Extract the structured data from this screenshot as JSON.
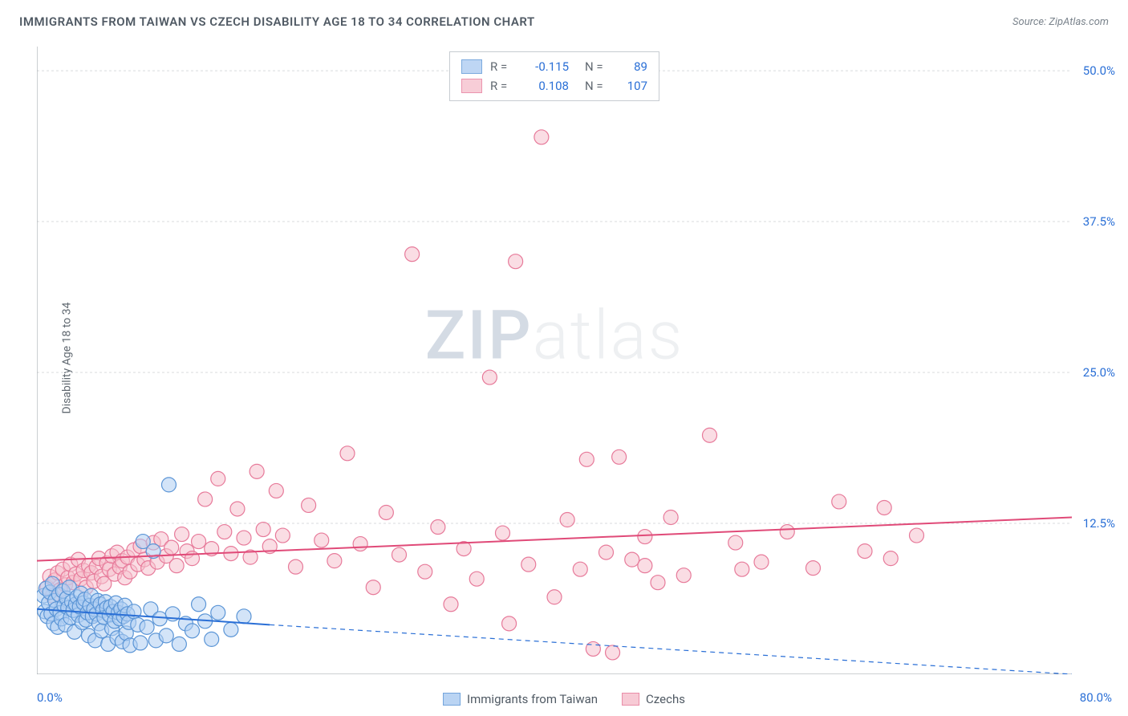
{
  "title": "IMMIGRANTS FROM TAIWAN VS CZECH DISABILITY AGE 18 TO 34 CORRELATION CHART",
  "source_label": "Source: ZipAtlas.com",
  "y_axis_label": "Disability Age 18 to 34",
  "watermark": {
    "zip": "ZIP",
    "atlas": "atlas",
    "color_zip": "#d4dbe4",
    "color_atlas": "#eef0f2"
  },
  "chart": {
    "type": "scatter",
    "background_color": "#ffffff",
    "grid_color": "#d8dbde",
    "axis_color": "#9aa0a6",
    "marker_radius": 9,
    "marker_stroke_width": 1.2,
    "xlim": [
      0,
      80
    ],
    "ylim": [
      0,
      52
    ],
    "y_ticks": [
      12.5,
      25.0,
      37.5,
      50.0
    ],
    "y_tick_labels": [
      "12.5%",
      "25.0%",
      "37.5%",
      "50.0%"
    ],
    "x_min_label": "0.0%",
    "x_max_label": "80.0%",
    "series": [
      {
        "name": "Immigrants from Taiwan",
        "fill_color": "#aecdf2",
        "stroke_color": "#5b95d6",
        "fill_opacity": 0.55,
        "R": "-0.115",
        "N": "89",
        "trend": {
          "x1": 0,
          "y1": 5.4,
          "x2": 18,
          "y2": 4.1,
          "dashed_ext_to": 80,
          "dashed_ext_y": 0.0,
          "color": "#2a6fd6",
          "width": 2
        },
        "points": [
          [
            0.5,
            6.5
          ],
          [
            0.6,
            5.2
          ],
          [
            0.7,
            7.1
          ],
          [
            0.8,
            4.8
          ],
          [
            0.9,
            5.9
          ],
          [
            1.0,
            6.8
          ],
          [
            1.1,
            5.0
          ],
          [
            1.2,
            7.5
          ],
          [
            1.3,
            4.2
          ],
          [
            1.4,
            6.1
          ],
          [
            1.5,
            5.4
          ],
          [
            1.6,
            3.9
          ],
          [
            1.7,
            6.6
          ],
          [
            1.8,
            5.1
          ],
          [
            1.9,
            4.6
          ],
          [
            2.0,
            6.9
          ],
          [
            2.1,
            5.7
          ],
          [
            2.2,
            4.1
          ],
          [
            2.3,
            6.3
          ],
          [
            2.4,
            5.5
          ],
          [
            2.5,
            7.2
          ],
          [
            2.6,
            4.7
          ],
          [
            2.7,
            6.0
          ],
          [
            2.8,
            5.3
          ],
          [
            2.9,
            3.5
          ],
          [
            3.0,
            5.8
          ],
          [
            3.1,
            6.4
          ],
          [
            3.2,
            4.9
          ],
          [
            3.3,
            5.6
          ],
          [
            3.4,
            6.7
          ],
          [
            3.5,
            4.3
          ],
          [
            3.6,
            5.9
          ],
          [
            3.7,
            6.2
          ],
          [
            3.8,
            4.5
          ],
          [
            3.9,
            5.1
          ],
          [
            4.0,
            3.2
          ],
          [
            4.1,
            5.7
          ],
          [
            4.2,
            6.5
          ],
          [
            4.3,
            4.8
          ],
          [
            4.4,
            5.4
          ],
          [
            4.5,
            2.8
          ],
          [
            4.6,
            5.0
          ],
          [
            4.7,
            6.1
          ],
          [
            4.8,
            4.2
          ],
          [
            4.9,
            5.8
          ],
          [
            5.0,
            3.6
          ],
          [
            5.1,
            5.3
          ],
          [
            5.2,
            4.7
          ],
          [
            5.3,
            6.0
          ],
          [
            5.4,
            5.5
          ],
          [
            5.5,
            2.5
          ],
          [
            5.6,
            4.9
          ],
          [
            5.7,
            5.6
          ],
          [
            5.8,
            3.8
          ],
          [
            5.9,
            5.2
          ],
          [
            6.0,
            4.4
          ],
          [
            6.1,
            5.9
          ],
          [
            6.2,
            3.0
          ],
          [
            6.3,
            5.1
          ],
          [
            6.4,
            4.6
          ],
          [
            6.5,
            5.4
          ],
          [
            6.6,
            2.7
          ],
          [
            6.7,
            4.8
          ],
          [
            6.8,
            5.7
          ],
          [
            6.9,
            3.4
          ],
          [
            7.0,
            5.0
          ],
          [
            7.1,
            4.3
          ],
          [
            7.2,
            2.4
          ],
          [
            7.5,
            5.2
          ],
          [
            7.8,
            4.1
          ],
          [
            8.0,
            2.6
          ],
          [
            8.2,
            11.0
          ],
          [
            8.5,
            3.9
          ],
          [
            8.8,
            5.4
          ],
          [
            9.0,
            10.2
          ],
          [
            9.2,
            2.8
          ],
          [
            9.5,
            4.6
          ],
          [
            10.0,
            3.2
          ],
          [
            10.2,
            15.7
          ],
          [
            10.5,
            5.0
          ],
          [
            11.0,
            2.5
          ],
          [
            11.5,
            4.2
          ],
          [
            12.0,
            3.6
          ],
          [
            12.5,
            5.8
          ],
          [
            13.0,
            4.4
          ],
          [
            13.5,
            2.9
          ],
          [
            14.0,
            5.1
          ],
          [
            15.0,
            3.7
          ],
          [
            16.0,
            4.8
          ]
        ]
      },
      {
        "name": "Czechs",
        "fill_color": "#f6c1ce",
        "stroke_color": "#e77a9a",
        "fill_opacity": 0.55,
        "R": "0.108",
        "N": "107",
        "trend": {
          "x1": 0,
          "y1": 9.4,
          "x2": 80,
          "y2": 13.0,
          "color": "#e04a78",
          "width": 2
        },
        "points": [
          [
            0.8,
            7.2
          ],
          [
            1.0,
            8.1
          ],
          [
            1.2,
            6.5
          ],
          [
            1.4,
            7.8
          ],
          [
            1.6,
            8.4
          ],
          [
            1.8,
            7.0
          ],
          [
            2.0,
            8.7
          ],
          [
            2.2,
            7.4
          ],
          [
            2.4,
            8.0
          ],
          [
            2.6,
            9.1
          ],
          [
            2.8,
            7.6
          ],
          [
            3.0,
            8.3
          ],
          [
            3.2,
            9.5
          ],
          [
            3.4,
            7.9
          ],
          [
            3.6,
            8.6
          ],
          [
            3.8,
            7.2
          ],
          [
            4.0,
            9.0
          ],
          [
            4.2,
            8.4
          ],
          [
            4.4,
            7.7
          ],
          [
            4.6,
            8.9
          ],
          [
            4.8,
            9.6
          ],
          [
            5.0,
            8.1
          ],
          [
            5.2,
            7.5
          ],
          [
            5.4,
            9.2
          ],
          [
            5.6,
            8.7
          ],
          [
            5.8,
            9.8
          ],
          [
            6.0,
            8.3
          ],
          [
            6.2,
            10.1
          ],
          [
            6.4,
            8.9
          ],
          [
            6.6,
            9.4
          ],
          [
            6.8,
            8.0
          ],
          [
            7.0,
            9.7
          ],
          [
            7.2,
            8.5
          ],
          [
            7.5,
            10.3
          ],
          [
            7.8,
            9.1
          ],
          [
            8.0,
            10.6
          ],
          [
            8.3,
            9.5
          ],
          [
            8.6,
            8.8
          ],
          [
            9.0,
            10.9
          ],
          [
            9.3,
            9.3
          ],
          [
            9.6,
            11.2
          ],
          [
            10.0,
            9.8
          ],
          [
            10.4,
            10.5
          ],
          [
            10.8,
            9.0
          ],
          [
            11.2,
            11.6
          ],
          [
            11.6,
            10.2
          ],
          [
            12.0,
            9.6
          ],
          [
            12.5,
            11.0
          ],
          [
            13.0,
            14.5
          ],
          [
            13.5,
            10.4
          ],
          [
            14.0,
            16.2
          ],
          [
            14.5,
            11.8
          ],
          [
            15.0,
            10.0
          ],
          [
            15.5,
            13.7
          ],
          [
            16.0,
            11.3
          ],
          [
            16.5,
            9.7
          ],
          [
            17.0,
            16.8
          ],
          [
            17.5,
            12.0
          ],
          [
            18.0,
            10.6
          ],
          [
            18.5,
            15.2
          ],
          [
            19.0,
            11.5
          ],
          [
            20.0,
            8.9
          ],
          [
            21.0,
            14.0
          ],
          [
            22.0,
            11.1
          ],
          [
            23.0,
            9.4
          ],
          [
            24.0,
            18.3
          ],
          [
            25.0,
            10.8
          ],
          [
            26.0,
            7.2
          ],
          [
            27.0,
            13.4
          ],
          [
            28.0,
            9.9
          ],
          [
            29.0,
            34.8
          ],
          [
            30.0,
            8.5
          ],
          [
            31.0,
            12.2
          ],
          [
            32.0,
            5.8
          ],
          [
            33.0,
            10.4
          ],
          [
            34.0,
            7.9
          ],
          [
            35.0,
            24.6
          ],
          [
            36.0,
            11.7
          ],
          [
            37.0,
            34.2
          ],
          [
            38.0,
            9.1
          ],
          [
            39.0,
            44.5
          ],
          [
            40.0,
            6.4
          ],
          [
            41.0,
            12.8
          ],
          [
            42.0,
            8.7
          ],
          [
            43.0,
            2.1
          ],
          [
            44.0,
            10.1
          ],
          [
            45.0,
            18.0
          ],
          [
            46.0,
            9.5
          ],
          [
            47.0,
            11.4
          ],
          [
            48.0,
            7.6
          ],
          [
            49.0,
            13.0
          ],
          [
            50.0,
            8.2
          ],
          [
            52.0,
            19.8
          ],
          [
            54.0,
            10.9
          ],
          [
            56.0,
            9.3
          ],
          [
            58.0,
            11.8
          ],
          [
            60.0,
            8.8
          ],
          [
            62.0,
            14.3
          ],
          [
            64.0,
            10.2
          ],
          [
            66.0,
            9.6
          ],
          [
            68.0,
            11.5
          ],
          [
            44.5,
            1.8
          ],
          [
            47.0,
            9.0
          ],
          [
            42.5,
            17.8
          ],
          [
            36.5,
            4.2
          ],
          [
            54.5,
            8.7
          ],
          [
            65.5,
            13.8
          ]
        ]
      }
    ]
  },
  "bottom_legend": {
    "items": [
      "Immigrants from Taiwan",
      "Czechs"
    ]
  }
}
